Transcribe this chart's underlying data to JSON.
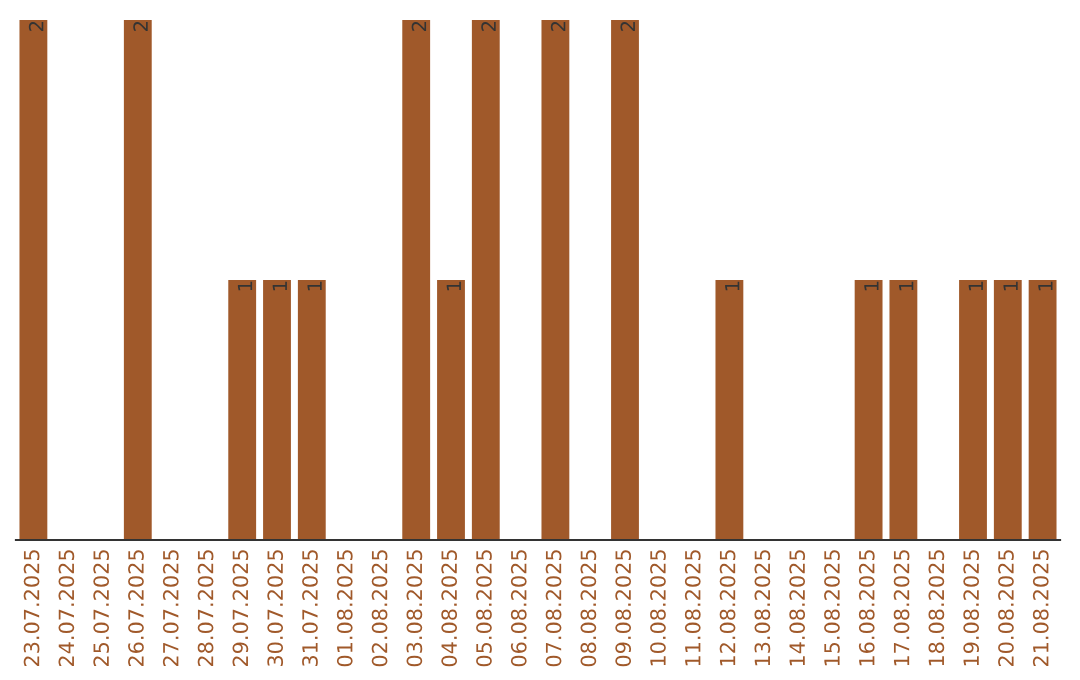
{
  "chart_data": {
    "type": "bar",
    "categories": [
      "23.07.2025",
      "24.07.2025",
      "25.07.2025",
      "26.07.2025",
      "27.07.2025",
      "28.07.2025",
      "29.07.2025",
      "30.07.2025",
      "31.07.2025",
      "01.08.2025",
      "02.08.2025",
      "03.08.2025",
      "04.08.2025",
      "05.08.2025",
      "06.08.2025",
      "07.08.2025",
      "08.08.2025",
      "09.08.2025",
      "10.08.2025",
      "11.08.2025",
      "12.08.2025",
      "13.08.2025",
      "14.08.2025",
      "15.08.2025",
      "16.08.2025",
      "17.08.2025",
      "18.08.2025",
      "19.08.2025",
      "20.08.2025",
      "21.08.2025"
    ],
    "values": [
      2,
      0,
      0,
      2,
      0,
      0,
      1,
      1,
      1,
      0,
      0,
      2,
      1,
      2,
      0,
      2,
      0,
      2,
      0,
      0,
      1,
      0,
      0,
      0,
      1,
      1,
      0,
      1,
      1,
      1
    ],
    "value_labels": [
      "2",
      null,
      null,
      "2",
      null,
      null,
      "1",
      "1",
      "1",
      null,
      null,
      "2",
      "1",
      "2",
      null,
      "2",
      null,
      "2",
      null,
      null,
      "1",
      null,
      null,
      null,
      "1",
      "1",
      null,
      "1",
      "1",
      "1"
    ],
    "color": "#a0592a",
    "tick_labels": "x",
    "grid": false
  }
}
